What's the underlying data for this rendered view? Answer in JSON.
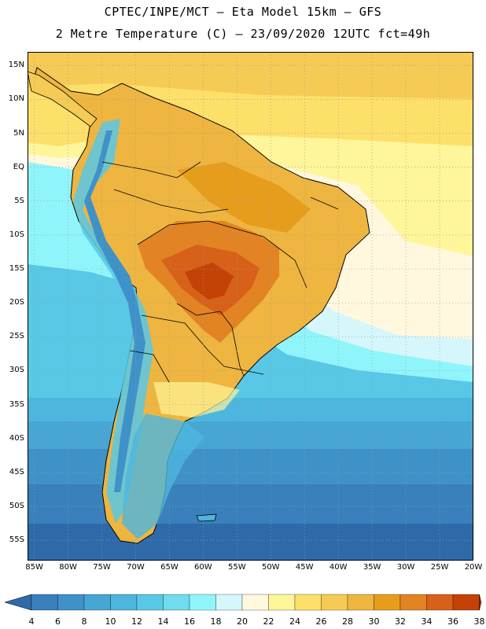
{
  "header": {
    "line1": "CPTEC/INPE/MCT –  Eta Model 15km – GFS",
    "line2": "2 Metre Temperature (C) – 23/09/2020 12UTC fct=49h"
  },
  "map": {
    "region": "South America",
    "lat_ticks": [
      "15N",
      "10N",
      "5N",
      "EQ",
      "5S",
      "10S",
      "15S",
      "20S",
      "25S",
      "30S",
      "35S",
      "40S",
      "45S",
      "50S",
      "55S"
    ],
    "lon_ticks": [
      "85W",
      "80W",
      "75W",
      "70W",
      "65W",
      "60W",
      "55W",
      "50W",
      "45W",
      "40W",
      "35W",
      "30W",
      "25W",
      "20W"
    ],
    "lat_values": [
      15,
      10,
      5,
      0,
      -5,
      -10,
      -15,
      -20,
      -25,
      -30,
      -35,
      -40,
      -45,
      -50,
      -55
    ],
    "lon_values": [
      -85,
      -80,
      -75,
      -70,
      -65,
      -60,
      -55,
      -50,
      -45,
      -40,
      -35,
      -30,
      -25,
      -20
    ],
    "lat_range": [
      -58,
      17
    ],
    "lon_range": [
      -86,
      -20
    ],
    "gridlines": "dotted"
  },
  "legend": {
    "labels": [
      "4",
      "6",
      "8",
      "10",
      "12",
      "14",
      "16",
      "18",
      "20",
      "22",
      "24",
      "26",
      "28",
      "30",
      "32",
      "34",
      "36",
      "38"
    ],
    "colors": [
      "#2e6aaa",
      "#3a80bd",
      "#3f92c8",
      "#47a6d4",
      "#4cb6de",
      "#58c8e6",
      "#6fdcef",
      "#8ff5fb",
      "#d5f6fb",
      "#fff8de",
      "#fff59a",
      "#fde06a",
      "#f5cb55",
      "#eeb540",
      "#e79d1c",
      "#e28423",
      "#d8611a",
      "#c34307",
      "#b03808"
    ]
  },
  "colors": {
    "ocean_cold": "#2e6aaa",
    "ocean_cool": "#4cb6de",
    "ocean_mild": "#8ff5fb",
    "tropical_sea": "#fde06a",
    "land_warm": "#f5cb55",
    "land_hot": "#e28423",
    "land_hottest": "#c34307",
    "border": "#000000"
  }
}
